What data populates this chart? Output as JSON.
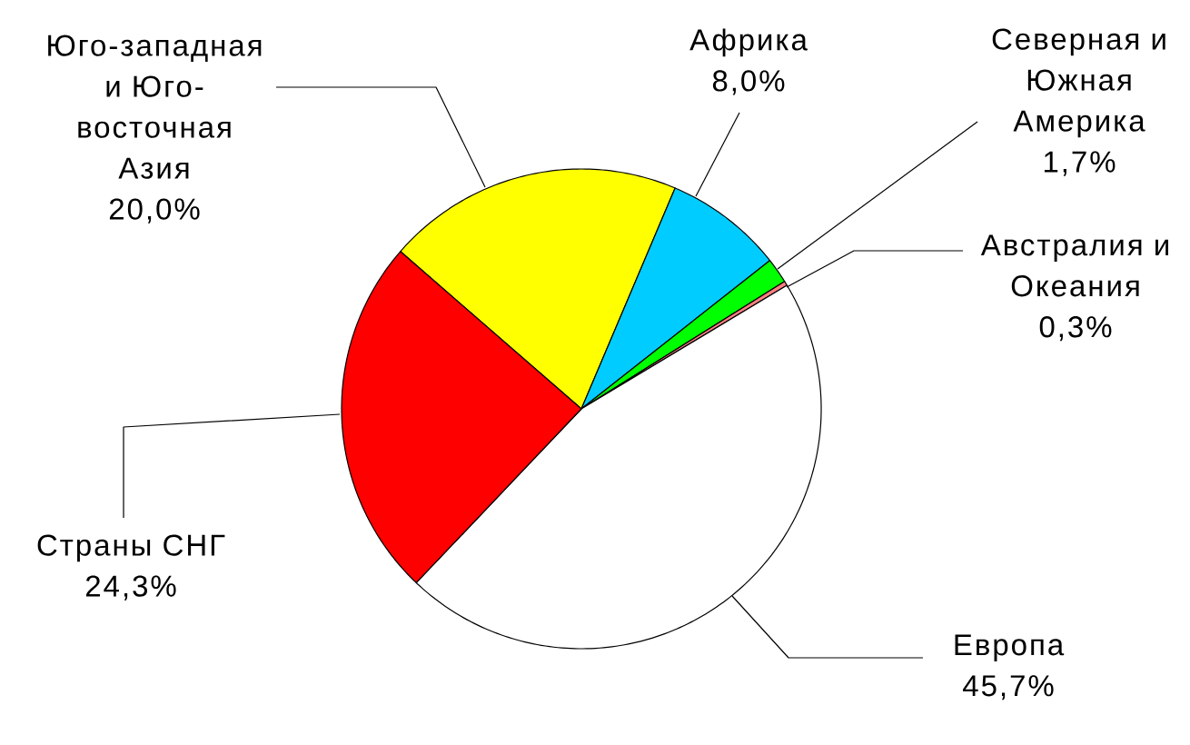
{
  "chart_data": {
    "type": "pie",
    "categories": [
      "Юго-западная и Юго-восточная Азия",
      "Африка",
      "Северная и Южная Америка",
      "Австралия и Океания",
      "Европа",
      "Страны СНГ"
    ],
    "values": [
      20.0,
      8.0,
      1.7,
      0.3,
      45.7,
      24.3
    ],
    "value_labels": [
      "20,0%",
      "8,0%",
      "1,7%",
      "0,3%",
      "45,7%",
      "24,3%"
    ],
    "colors": [
      "#ffff00",
      "#00ccff",
      "#00ff00",
      "#ff8080",
      "#ffffff",
      "#ff0000"
    ]
  }
}
